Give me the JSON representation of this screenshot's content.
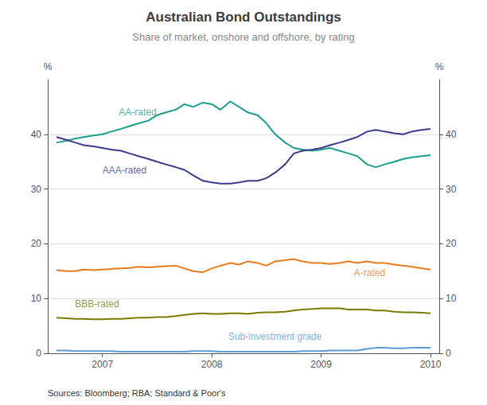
{
  "chart_data": {
    "type": "line",
    "title": "Australian Bond Outstandings",
    "subtitle": "Share of market, onshore and offshore, by rating",
    "source": "Sources: Bloomberg; RBA; Standard & Poor's",
    "ylabel": "%",
    "y2label": "%",
    "xlim": [
      2006.5,
      2010.08
    ],
    "xticks": [
      2007,
      2008,
      2009,
      2010
    ],
    "ylim": [
      0,
      50
    ],
    "yticks": [
      0,
      10,
      20,
      30,
      40
    ],
    "y2lim": [
      0,
      50
    ],
    "y2ticks": [
      0,
      10,
      20,
      30,
      40
    ],
    "grid": "y",
    "x": [
      2006.58,
      2006.67,
      2006.75,
      2006.83,
      2006.92,
      2007.0,
      2007.08,
      2007.17,
      2007.25,
      2007.33,
      2007.42,
      2007.5,
      2007.58,
      2007.67,
      2007.75,
      2007.83,
      2007.92,
      2008.0,
      2008.08,
      2008.17,
      2008.25,
      2008.33,
      2008.42,
      2008.5,
      2008.58,
      2008.67,
      2008.75,
      2008.83,
      2008.92,
      2009.0,
      2009.08,
      2009.17,
      2009.25,
      2009.33,
      2009.42,
      2009.5,
      2009.58,
      2009.67,
      2009.75,
      2009.83,
      2009.92,
      2010.0
    ],
    "series": [
      {
        "name": "AA-rated",
        "color": "#1a9e8f",
        "values": [
          38.5,
          38.8,
          39.2,
          39.5,
          39.8,
          40.0,
          40.5,
          41.0,
          41.5,
          42.0,
          42.5,
          43.5,
          44.0,
          44.5,
          45.5,
          45.0,
          45.8,
          45.5,
          44.5,
          46.0,
          45.0,
          44.0,
          43.5,
          42.0,
          40.0,
          38.5,
          37.5,
          37.2,
          37.0,
          37.2,
          37.5,
          37.0,
          36.5,
          36.0,
          34.5,
          34.0,
          34.5,
          35.0,
          35.5,
          35.8,
          36.0,
          36.2
        ]
      },
      {
        "name": "AAA-rated",
        "color": "#3b3b8c",
        "values": [
          39.5,
          39.0,
          38.5,
          38.0,
          37.8,
          37.5,
          37.2,
          37.0,
          36.5,
          36.0,
          35.5,
          35.0,
          34.5,
          34.0,
          33.5,
          32.5,
          31.5,
          31.2,
          31.0,
          31.0,
          31.2,
          31.5,
          31.5,
          32.0,
          33.0,
          34.5,
          36.5,
          37.0,
          37.2,
          37.5,
          38.0,
          38.5,
          39.0,
          39.5,
          40.5,
          40.8,
          40.5,
          40.2,
          40.0,
          40.5,
          40.8,
          41.0
        ]
      },
      {
        "name": "A-rated",
        "color": "#e87d1e",
        "values": [
          15.2,
          15.0,
          15.0,
          15.3,
          15.2,
          15.3,
          15.4,
          15.5,
          15.6,
          15.8,
          15.7,
          15.8,
          15.9,
          16.0,
          15.5,
          15.0,
          14.8,
          15.5,
          16.0,
          16.5,
          16.2,
          16.8,
          16.5,
          16.0,
          16.8,
          17.0,
          17.2,
          16.8,
          16.5,
          16.5,
          16.3,
          16.5,
          16.8,
          16.5,
          16.8,
          16.5,
          16.5,
          16.2,
          16.0,
          15.8,
          15.5,
          15.3
        ]
      },
      {
        "name": "BBB-rated",
        "color": "#7b7b00",
        "values": [
          6.5,
          6.4,
          6.3,
          6.3,
          6.2,
          6.2,
          6.3,
          6.3,
          6.4,
          6.5,
          6.5,
          6.6,
          6.6,
          6.8,
          7.0,
          7.2,
          7.3,
          7.2,
          7.2,
          7.3,
          7.3,
          7.2,
          7.4,
          7.5,
          7.5,
          7.6,
          7.8,
          8.0,
          8.1,
          8.2,
          8.2,
          8.2,
          8.0,
          8.0,
          8.0,
          7.8,
          7.8,
          7.6,
          7.5,
          7.5,
          7.4,
          7.3
        ]
      },
      {
        "name": "Sub-investment grade",
        "color": "#5b9bd5",
        "values": [
          0.5,
          0.5,
          0.4,
          0.4,
          0.4,
          0.4,
          0.4,
          0.3,
          0.3,
          0.3,
          0.3,
          0.3,
          0.3,
          0.3,
          0.3,
          0.4,
          0.4,
          0.4,
          0.3,
          0.3,
          0.3,
          0.3,
          0.3,
          0.3,
          0.3,
          0.3,
          0.3,
          0.4,
          0.4,
          0.4,
          0.5,
          0.5,
          0.5,
          0.5,
          0.8,
          1.0,
          1.0,
          0.9,
          0.9,
          1.0,
          1.0,
          1.0
        ]
      }
    ],
    "annotations": [
      {
        "text": "AA-rated",
        "x": 2007.15,
        "y": 43.2,
        "color": "#1a9e8f"
      },
      {
        "text": "AAA-rated",
        "x": 2007.0,
        "y": 32.5,
        "color": "#3b3b8c"
      },
      {
        "text": "A-rated",
        "x": 2009.3,
        "y": 13.8,
        "color": "#e87d1e"
      },
      {
        "text": "BBB-rated",
        "x": 2006.75,
        "y": 8.2,
        "color": "#7b7b00"
      },
      {
        "text": "Sub-investment grade",
        "x": 2008.15,
        "y": 2.2,
        "color": "#5b9bd5"
      }
    ]
  }
}
